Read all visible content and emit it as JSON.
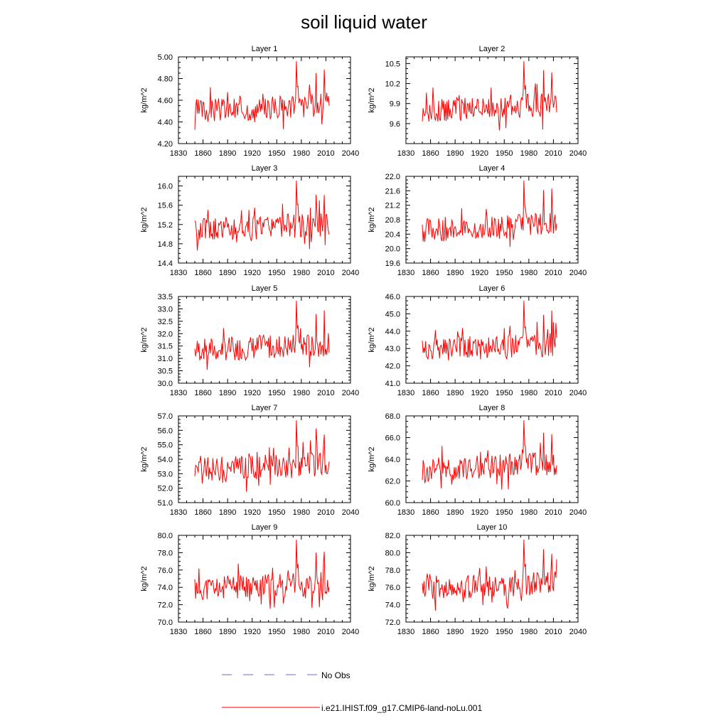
{
  "title": "soil liquid water",
  "legend": [
    {
      "label": "No Obs",
      "color": "#6a6acf",
      "style": "dashed"
    },
    {
      "label": "i.e21.IHIST.f09_g17.CMIP6-land-noLu.001",
      "color": "#ff0000",
      "style": "solid"
    }
  ],
  "chart_data": [
    {
      "type": "line",
      "title": "Layer 1",
      "ylabel": "kg/m^2",
      "xlim": [
        1830,
        2040
      ],
      "ylim": [
        4.2,
        5.0
      ],
      "xticks": [
        "1830",
        "1860",
        "1890",
        "1920",
        "1950",
        "1980",
        "2010",
        "2040"
      ],
      "yticks": [
        "4.20",
        "4.40",
        "4.60",
        "4.80",
        "5.00"
      ],
      "yvals": [
        4.2,
        4.4,
        4.6,
        4.8,
        5.0
      ],
      "series": [
        {
          "name": "i.e21.IHIST.f09_g17.CMIP6-land-noLu.001",
          "x_start": 1850,
          "x_end": 2014
        }
      ]
    },
    {
      "type": "line",
      "title": "Layer 2",
      "ylabel": "kg/m^2",
      "xlim": [
        1830,
        2040
      ],
      "ylim": [
        9.3,
        10.6
      ],
      "xticks": [
        "1830",
        "1860",
        "1890",
        "1920",
        "1950",
        "1980",
        "2010",
        "2040"
      ],
      "yticks": [
        "9.6",
        "9.9",
        "10.2",
        "10.5"
      ],
      "yvals": [
        9.6,
        9.9,
        10.2,
        10.5
      ],
      "series": [
        {
          "name": "i.e21.IHIST.f09_g17.CMIP6-land-noLu.001",
          "x_start": 1850,
          "x_end": 2014
        }
      ]
    },
    {
      "type": "line",
      "title": "Layer 3",
      "ylabel": "kg/m^2",
      "xlim": [
        1830,
        2040
      ],
      "ylim": [
        14.4,
        16.2
      ],
      "xticks": [
        "1830",
        "1860",
        "1890",
        "1920",
        "1950",
        "1980",
        "2010",
        "2040"
      ],
      "yticks": [
        "14.4",
        "14.8",
        "15.2",
        "15.6",
        "16.0"
      ],
      "yvals": [
        14.4,
        14.8,
        15.2,
        15.6,
        16.0
      ],
      "series": [
        {
          "name": "i.e21.IHIST.f09_g17.CMIP6-land-noLu.001",
          "x_start": 1850,
          "x_end": 2014
        }
      ]
    },
    {
      "type": "line",
      "title": "Layer 4",
      "ylabel": "kg/m^2",
      "xlim": [
        1830,
        2040
      ],
      "ylim": [
        19.6,
        22.0
      ],
      "xticks": [
        "1830",
        "1860",
        "1890",
        "1920",
        "1950",
        "1980",
        "2010",
        "2040"
      ],
      "yticks": [
        "19.6",
        "20.0",
        "20.4",
        "20.8",
        "21.2",
        "21.6",
        "22.0"
      ],
      "yvals": [
        19.6,
        20.0,
        20.4,
        20.8,
        21.2,
        21.6,
        22.0
      ],
      "series": [
        {
          "name": "i.e21.IHIST.f09_g17.CMIP6-land-noLu.001",
          "x_start": 1850,
          "x_end": 2014
        }
      ]
    },
    {
      "type": "line",
      "title": "Layer 5",
      "ylabel": "kg/m^2",
      "xlim": [
        1830,
        2040
      ],
      "ylim": [
        30.0,
        33.5
      ],
      "xticks": [
        "1830",
        "1860",
        "1890",
        "1920",
        "1950",
        "1980",
        "2010",
        "2040"
      ],
      "yticks": [
        "30.0",
        "30.5",
        "31.0",
        "31.5",
        "32.0",
        "32.5",
        "33.0",
        "33.5"
      ],
      "yvals": [
        30.0,
        30.5,
        31.0,
        31.5,
        32.0,
        32.5,
        33.0,
        33.5
      ],
      "series": [
        {
          "name": "i.e21.IHIST.f09_g17.CMIP6-land-noLu.001",
          "x_start": 1850,
          "x_end": 2014
        }
      ]
    },
    {
      "type": "line",
      "title": "Layer 6",
      "ylabel": "kg/m^2",
      "xlim": [
        1830,
        2040
      ],
      "ylim": [
        41.0,
        46.0
      ],
      "xticks": [
        "1830",
        "1860",
        "1890",
        "1920",
        "1950",
        "1980",
        "2010",
        "2040"
      ],
      "yticks": [
        "41.0",
        "42.0",
        "43.0",
        "44.0",
        "45.0",
        "46.0"
      ],
      "yvals": [
        41.0,
        42.0,
        43.0,
        44.0,
        45.0,
        46.0
      ],
      "series": [
        {
          "name": "i.e21.IHIST.f09_g17.CMIP6-land-noLu.001",
          "x_start": 1850,
          "x_end": 2014
        }
      ]
    },
    {
      "type": "line",
      "title": "Layer 7",
      "ylabel": "kg/m^2",
      "xlim": [
        1830,
        2040
      ],
      "ylim": [
        51.0,
        57.0
      ],
      "xticks": [
        "1830",
        "1860",
        "1890",
        "1920",
        "1950",
        "1980",
        "2010",
        "2040"
      ],
      "yticks": [
        "51.0",
        "52.0",
        "53.0",
        "54.0",
        "55.0",
        "56.0",
        "57.0"
      ],
      "yvals": [
        51.0,
        52.0,
        53.0,
        54.0,
        55.0,
        56.0,
        57.0
      ],
      "series": [
        {
          "name": "i.e21.IHIST.f09_g17.CMIP6-land-noLu.001",
          "x_start": 1850,
          "x_end": 2014
        }
      ]
    },
    {
      "type": "line",
      "title": "Layer 8",
      "ylabel": "kg/m^2",
      "xlim": [
        1830,
        2040
      ],
      "ylim": [
        60.0,
        68.0
      ],
      "xticks": [
        "1830",
        "1860",
        "1890",
        "1920",
        "1950",
        "1980",
        "2010",
        "2040"
      ],
      "yticks": [
        "60.0",
        "62.0",
        "64.0",
        "66.0",
        "68.0"
      ],
      "yvals": [
        60.0,
        62.0,
        64.0,
        66.0,
        68.0
      ],
      "series": [
        {
          "name": "i.e21.IHIST.f09_g17.CMIP6-land-noLu.001",
          "x_start": 1850,
          "x_end": 2014
        }
      ]
    },
    {
      "type": "line",
      "title": "Layer 9",
      "ylabel": "kg/m^2",
      "xlim": [
        1830,
        2040
      ],
      "ylim": [
        70.0,
        80.0
      ],
      "xticks": [
        "1830",
        "1860",
        "1890",
        "1920",
        "1950",
        "1980",
        "2010",
        "2040"
      ],
      "yticks": [
        "70.0",
        "72.0",
        "74.0",
        "76.0",
        "78.0",
        "80.0"
      ],
      "yvals": [
        70.0,
        72.0,
        74.0,
        76.0,
        78.0,
        80.0
      ],
      "series": [
        {
          "name": "i.e21.IHIST.f09_g17.CMIP6-land-noLu.001",
          "x_start": 1850,
          "x_end": 2014
        }
      ]
    },
    {
      "type": "line",
      "title": "Layer 10",
      "ylabel": "kg/m^2",
      "xlim": [
        1830,
        2040
      ],
      "ylim": [
        72.0,
        82.0
      ],
      "xticks": [
        "1830",
        "1860",
        "1890",
        "1920",
        "1950",
        "1980",
        "2010",
        "2040"
      ],
      "yticks": [
        "72.0",
        "74.0",
        "76.0",
        "78.0",
        "80.0",
        "82.0"
      ],
      "yvals": [
        72.0,
        74.0,
        76.0,
        78.0,
        80.0,
        82.0
      ],
      "series": [
        {
          "name": "i.e21.IHIST.f09_g17.CMIP6-land-noLu.001",
          "x_start": 1850,
          "x_end": 2014
        }
      ]
    }
  ]
}
